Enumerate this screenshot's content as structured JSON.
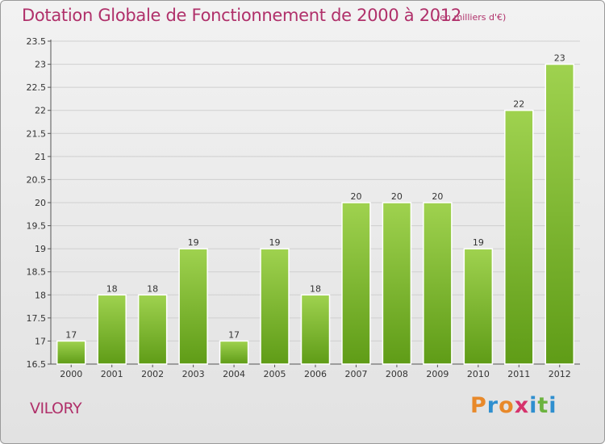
{
  "header": {
    "title": "Dotation Globale de Fonctionnement de 2000 à 2012",
    "unit": "(en milliers d'€)"
  },
  "footer": {
    "commune": "VILORY",
    "logo_text": "Proxiti",
    "logo_colors": [
      "#e8892a",
      "#2f8fcf",
      "#e8892a",
      "#d6336c",
      "#2f8fcf",
      "#6cb33f",
      "#2f8fcf"
    ]
  },
  "colors": {
    "accent": "#b0306a",
    "bar_light": "#9fd24f",
    "bar_dark": "#5f9c17"
  },
  "chart_data": {
    "type": "bar",
    "title": "Dotation Globale de Fonctionnement de 2000 à 2012",
    "xlabel": "",
    "ylabel": "",
    "categories": [
      "2000",
      "2001",
      "2002",
      "2003",
      "2004",
      "2005",
      "2006",
      "2007",
      "2008",
      "2009",
      "2010",
      "2011",
      "2012"
    ],
    "values": [
      17,
      18,
      18,
      19,
      17,
      19,
      18,
      20,
      20,
      20,
      19,
      22,
      23
    ],
    "ylim": [
      16.5,
      23.5
    ],
    "yticks": [
      16.5,
      17,
      17.5,
      18,
      18.5,
      19,
      19.5,
      20,
      20.5,
      21,
      21.5,
      22,
      22.5,
      23,
      23.5
    ],
    "grid": true,
    "legend": "none"
  }
}
